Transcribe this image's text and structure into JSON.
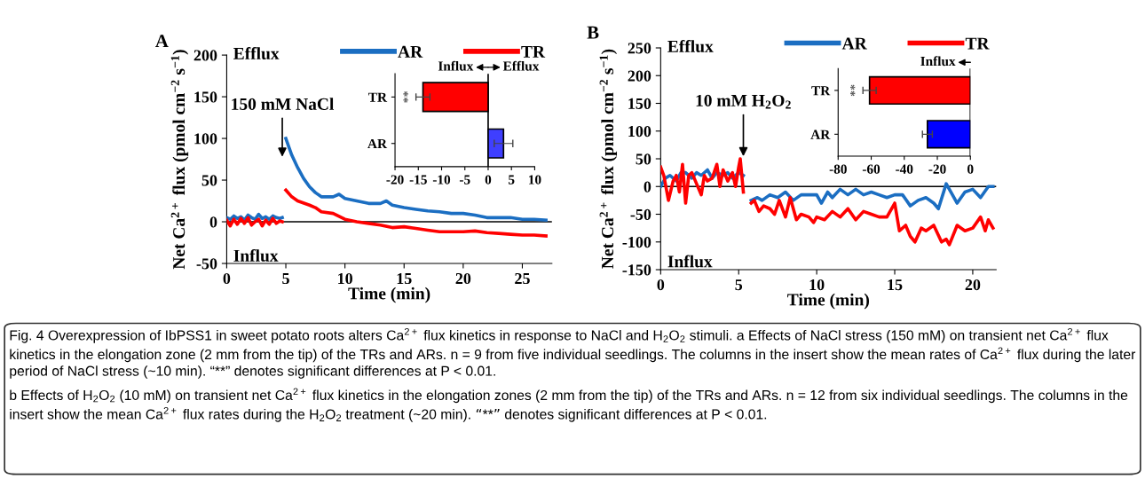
{
  "chart_data": [
    {
      "type": "line",
      "title": "A",
      "xlabel": "Time (min)",
      "ylabel": "Net Ca$^{2+}$ flux (pmol cm$^{−2}$ s$^{−1}$)",
      "xlim": [
        0,
        27.5
      ],
      "ylim": [
        -50,
        200
      ],
      "xticks": [
        0,
        5,
        10,
        15,
        20,
        25
      ],
      "yticks": [
        -50,
        0,
        50,
        100,
        150,
        200
      ],
      "legend": "top right",
      "grid": false,
      "ref_lines": [
        {
          "axis": "y",
          "value": 0,
          "color": "#000000"
        }
      ],
      "annotations": [
        "Efflux",
        "Influx",
        "150 mM NaCl"
      ],
      "series": [
        {
          "name": "AR",
          "color": "#1b6ec2",
          "x": [
            0,
            0.3,
            0.6,
            0.9,
            1.2,
            1.5,
            1.8,
            2.1,
            2.4,
            2.7,
            3.0,
            3.3,
            3.6,
            3.9,
            4.2,
            4.5,
            4.7,
            null,
            5.0,
            5.5,
            6.0,
            6.5,
            7.0,
            7.5,
            8.0,
            9.0,
            9.5,
            10.0,
            11.0,
            12.0,
            13.0,
            13.5,
            14.0,
            15.0,
            16.0,
            17.0,
            18.0,
            19.0,
            20.0,
            21.0,
            22.0,
            23.0,
            24.0,
            25.0,
            26.0,
            27.0
          ],
          "values": [
            5,
            3,
            7,
            4,
            6,
            2,
            8,
            5,
            3,
            9,
            4,
            6,
            3,
            7,
            5,
            4,
            5,
            null,
            100,
            80,
            65,
            52,
            42,
            35,
            30,
            30,
            33,
            28,
            25,
            22,
            22,
            25,
            20,
            17,
            15,
            13,
            12,
            10,
            10,
            8,
            5,
            5,
            5,
            3,
            3,
            2
          ]
        },
        {
          "name": "TR",
          "color": "#ff0000",
          "x": [
            0,
            0.3,
            0.6,
            0.9,
            1.2,
            1.5,
            1.8,
            2.1,
            2.4,
            2.7,
            3.0,
            3.3,
            3.6,
            3.9,
            4.2,
            4.5,
            4.7,
            null,
            5.0,
            5.5,
            6.0,
            7.0,
            7.5,
            8.0,
            9.0,
            10.0,
            11.0,
            12.0,
            13.0,
            14.0,
            15.0,
            16.0,
            17.0,
            18.0,
            19.0,
            20.0,
            21.0,
            22.0,
            23.0,
            24.0,
            25.0,
            26.0,
            27.0
          ],
          "values": [
            2,
            -5,
            3,
            -3,
            4,
            -2,
            5,
            -4,
            0,
            3,
            -5,
            2,
            -3,
            4,
            -2,
            1,
            0,
            null,
            38,
            30,
            25,
            20,
            17,
            12,
            10,
            3,
            0,
            -2,
            -4,
            -7,
            -6,
            -8,
            -10,
            -12,
            -12,
            -12,
            -11,
            -13,
            -14,
            -15,
            -16,
            -16,
            -17
          ]
        }
      ]
    },
    {
      "type": "bar",
      "orientation": "horizontal",
      "categories": [
        "TR",
        "AR"
      ],
      "values": [
        -14,
        3.3
      ],
      "errors": [
        1.5,
        2
      ],
      "colors": [
        "#ff0000",
        "#3f3fff"
      ],
      "xlim": [
        -20,
        10
      ],
      "xticks": [
        -20,
        -15,
        -10,
        -5,
        0,
        5,
        10
      ],
      "ref_lines": [
        {
          "axis": "x",
          "value": 0,
          "color": "#000000"
        }
      ],
      "annotations": [
        "**",
        "Influx",
        "Efflux"
      ]
    },
    {
      "type": "line",
      "title": "B",
      "xlabel": "Time (min)",
      "ylabel": "Net Ca$^{2+}$ flux (pmol cm$^{−2}$ s$^{−1}$)",
      "xlim": [
        0,
        21.5
      ],
      "ylim": [
        -150,
        250
      ],
      "xticks": [
        0,
        5,
        10,
        15,
        20
      ],
      "yticks": [
        -150,
        -100,
        -50,
        0,
        50,
        100,
        150,
        200,
        250
      ],
      "legend": "top right",
      "grid": false,
      "ref_lines": [
        {
          "axis": "y",
          "value": 0,
          "color": "#000000"
        }
      ],
      "annotations": [
        "Efflux",
        "Influx",
        "10 mM H$_{2}$O$_{2}$"
      ],
      "series": [
        {
          "name": "AR",
          "color": "#1b6ec2",
          "x": [
            0,
            0.3,
            0.6,
            1.0,
            1.3,
            1.6,
            2.0,
            2.3,
            2.6,
            3.0,
            3.3,
            3.6,
            4.0,
            4.3,
            4.6,
            5.0,
            5.3,
            null,
            5.8,
            6.2,
            6.5,
            7.0,
            7.5,
            8.0,
            8.5,
            9.0,
            9.5,
            10.0,
            10.3,
            10.7,
            11.0,
            11.5,
            12.0,
            12.5,
            13.0,
            13.5,
            14.0,
            14.5,
            15.0,
            15.5,
            16.0,
            16.5,
            17.0,
            17.5,
            17.8,
            18.3,
            18.7,
            19.0,
            19.5,
            20.0,
            20.5,
            21.0,
            21.3
          ],
          "values": [
            0,
            15,
            20,
            10,
            25,
            25,
            15,
            25,
            20,
            30,
            15,
            25,
            20,
            25,
            15,
            25,
            20,
            null,
            -25,
            -20,
            -25,
            -15,
            -20,
            -10,
            -25,
            -15,
            -15,
            -15,
            -30,
            -10,
            -20,
            -5,
            -15,
            -5,
            -15,
            -10,
            -15,
            -20,
            -15,
            -15,
            -35,
            -25,
            -20,
            -30,
            -40,
            5,
            -15,
            -30,
            -10,
            -5,
            -20,
            0,
            0
          ]
        },
        {
          "name": "TR",
          "color": "#ff0000",
          "x": [
            0,
            0.2,
            0.5,
            0.8,
            1.0,
            1.2,
            1.4,
            1.6,
            1.8,
            2.0,
            2.3,
            2.6,
            2.8,
            3.0,
            3.3,
            3.6,
            3.8,
            4.0,
            4.3,
            4.6,
            4.8,
            5.0,
            5.1,
            5.3,
            null,
            5.8,
            6.0,
            6.3,
            6.6,
            7.0,
            7.3,
            7.6,
            8.0,
            8.3,
            8.7,
            9.0,
            9.5,
            9.8,
            10.0,
            10.5,
            11.0,
            11.5,
            12.0,
            12.5,
            13.0,
            13.5,
            14.0,
            14.5,
            15.0,
            15.3,
            15.7,
            16.0,
            16.3,
            16.7,
            17.0,
            17.5,
            18.0,
            18.3,
            18.5,
            19.0,
            19.5,
            20.0,
            20.5,
            20.8,
            21.0,
            21.3
          ],
          "values": [
            35,
            20,
            -25,
            10,
            20,
            -10,
            40,
            -30,
            20,
            25,
            5,
            -15,
            20,
            10,
            15,
            40,
            0,
            30,
            10,
            25,
            0,
            35,
            50,
            -10,
            null,
            -30,
            -25,
            -45,
            -35,
            -40,
            -50,
            -25,
            -55,
            -20,
            -60,
            -50,
            -55,
            -65,
            -55,
            -60,
            -45,
            -55,
            -40,
            -60,
            -45,
            -50,
            -55,
            -55,
            -30,
            -80,
            -70,
            -90,
            -100,
            -75,
            -80,
            -70,
            -100,
            -95,
            -105,
            -70,
            -80,
            -75,
            -55,
            -80,
            -60,
            -75
          ]
        }
      ]
    },
    {
      "type": "bar",
      "orientation": "horizontal",
      "categories": [
        "TR",
        "AR"
      ],
      "values": [
        -61,
        -26
      ],
      "errors": [
        4,
        3
      ],
      "colors": [
        "#ff0000",
        "#0000ff"
      ],
      "xlim": [
        -80,
        0
      ],
      "xticks": [
        -80,
        -60,
        -40,
        -20,
        0
      ],
      "ref_lines": [
        {
          "axis": "x",
          "value": 0,
          "color": "#000000"
        }
      ],
      "annotations": [
        "**",
        "Influx"
      ]
    },
    {
      "type": "other",
      "annotations": [
        "Fig. 4 Overexpression of IbPSS1 in sweet potato roots alters Ca$^{2+}$ flux kinetics in response to NaCl and H$_{2}$O$_{2}$ stimuli. a Effects of NaCl stress (150 mM) on transient net Ca$^{2+}$ flux kinetics in the elongation zone (2 mm from the tip) of the TRs and ARs. n = 9 from five individual seedlings. The columns in the insert show the mean rates of Ca$^{2+}$ flux during the later period of NaCl stress (~10 min). “**” denotes significant differences at P < 0.01.",
        "b Effects of H$_{2}$O$_{2}$ (10 mM) on transient net Ca$^{2+}$ flux kinetics in the elongation zones (2 mm from the tip) of the TRs and ARs. n = 12 from six individual seedlings. The columns in the insert show the mean Ca$^{2+}$ flux rates during the H$_{2}$O$_{2}$ treatment (~20 min). “**” denotes significant differences at P < 0.01."
      ]
    }
  ]
}
